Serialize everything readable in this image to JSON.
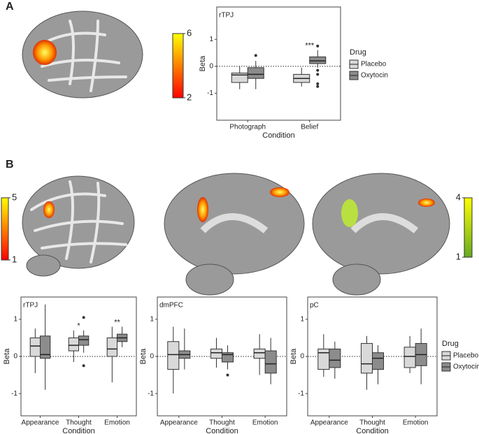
{
  "panels": [
    "A",
    "B"
  ],
  "chart_data": [
    {
      "type": "box",
      "title": "rTPJ",
      "xlabel": "Condition",
      "ylabel": "Beta",
      "categories": [
        "Photograph",
        "Belief"
      ],
      "ylim": [
        -2,
        2.2
      ],
      "yticks": [
        -1,
        0,
        1
      ],
      "reference_line": 0,
      "annotations": [
        null,
        "***"
      ],
      "legend": "right",
      "legend_title": "Drug",
      "series": [
        {
          "name": "Placebo",
          "color": "#d9d9d9",
          "values": [
            {
              "min": -0.85,
              "q1": -0.6,
              "median": -0.32,
              "q3": -0.25,
              "max": 0,
              "outliers": []
            },
            {
              "min": -0.75,
              "q1": -0.6,
              "median": -0.45,
              "q3": -0.3,
              "max": -0.05,
              "outliers": []
            }
          ]
        },
        {
          "name": "Oxytocin",
          "color": "#8c8c8c",
          "values": [
            {
              "min": -0.85,
              "q1": -0.45,
              "median": -0.3,
              "q3": -0.05,
              "max": 0.2,
              "outliers": [
                0.4
              ]
            },
            {
              "min": -0.05,
              "q1": 0.1,
              "median": 0.2,
              "q3": 0.35,
              "max": 0.6,
              "outliers": [
                0.75,
                -0.15,
                -0.3,
                -0.65,
                -0.75
              ]
            }
          ]
        }
      ]
    },
    {
      "type": "colorbar",
      "ylim": [
        2,
        6
      ],
      "yticks": [
        2,
        6
      ],
      "colors": [
        "#ff0000",
        "#ffff00"
      ]
    },
    {
      "type": "colorbar",
      "ylim": [
        1,
        5
      ],
      "yticks": [
        1,
        5
      ],
      "colors": [
        "#ff0000",
        "#ffff00"
      ]
    },
    {
      "type": "colorbar",
      "ylim": [
        1,
        4
      ],
      "yticks": [
        1,
        4
      ],
      "colors": [
        "#66aa22",
        "#ffff00"
      ]
    },
    {
      "type": "box",
      "title": "rTPJ",
      "xlabel": "Condition",
      "ylabel": "Beta",
      "categories": [
        "Appearance",
        "Thought",
        "Emotion"
      ],
      "ylim": [
        -1.6,
        1.6
      ],
      "yticks": [
        -1,
        0,
        1
      ],
      "reference_line": 0,
      "annotations": [
        null,
        "*",
        "**"
      ],
      "series": [
        {
          "name": "Placebo",
          "color": "#d9d9d9",
          "values": [
            {
              "min": -0.45,
              "q1": 0,
              "median": 0.28,
              "q3": 0.5,
              "max": 0.75,
              "outliers": []
            },
            {
              "min": -0.15,
              "q1": 0.15,
              "median": 0.3,
              "q3": 0.5,
              "max": 0.7,
              "outliers": []
            },
            {
              "min": -0.7,
              "q1": 0,
              "median": 0.2,
              "q3": 0.5,
              "max": 0.8,
              "outliers": []
            }
          ]
        },
        {
          "name": "Oxytocin",
          "color": "#8c8c8c",
          "values": [
            {
              "min": -0.9,
              "q1": -0.05,
              "median": 0.05,
              "q3": 0.55,
              "max": 1.4,
              "outliers": []
            },
            {
              "min": 0.1,
              "q1": 0.3,
              "median": 0.45,
              "q3": 0.55,
              "max": 0.7,
              "outliers": [
                1.05,
                -0.25
              ]
            },
            {
              "min": 0.25,
              "q1": 0.4,
              "median": 0.5,
              "q3": 0.6,
              "max": 0.8,
              "outliers": []
            }
          ]
        }
      ]
    },
    {
      "type": "box",
      "title": "dmPFC",
      "xlabel": "Condition",
      "ylabel": "Beta",
      "categories": [
        "Appearance",
        "Thought",
        "Emotion"
      ],
      "ylim": [
        -1.6,
        1.6
      ],
      "yticks": [
        -1,
        0,
        1
      ],
      "reference_line": 0,
      "series": [
        {
          "name": "Placebo",
          "color": "#d9d9d9",
          "values": [
            {
              "min": -1.0,
              "q1": -0.35,
              "median": 0.05,
              "q3": 0.4,
              "max": 0.8,
              "outliers": []
            },
            {
              "min": -0.3,
              "q1": -0.05,
              "median": 0.1,
              "q3": 0.2,
              "max": 0.5,
              "outliers": []
            },
            {
              "min": -0.5,
              "q1": -0.05,
              "median": 0.1,
              "q3": 0.2,
              "max": 0.6,
              "outliers": []
            }
          ]
        },
        {
          "name": "Oxytocin",
          "color": "#8c8c8c",
          "values": [
            {
              "min": -0.35,
              "q1": -0.05,
              "median": 0.05,
              "q3": 0.15,
              "max": 0.75,
              "outliers": []
            },
            {
              "min": -0.35,
              "q1": -0.15,
              "median": 0.05,
              "q3": 0.1,
              "max": 0.3,
              "outliers": [
                -0.5
              ]
            },
            {
              "min": -0.75,
              "q1": -0.45,
              "median": -0.2,
              "q3": 0.15,
              "max": 0.5,
              "outliers": []
            }
          ]
        }
      ]
    },
    {
      "type": "box",
      "title": "pC",
      "xlabel": "Condition",
      "ylabel": "Beta",
      "categories": [
        "Appearance",
        "Thought",
        "Emotion"
      ],
      "ylim": [
        -1.6,
        1.6
      ],
      "yticks": [
        -1,
        0,
        1
      ],
      "reference_line": 0,
      "legend": "right",
      "legend_title": "Drug",
      "series": [
        {
          "name": "Placebo",
          "color": "#d9d9d9",
          "values": [
            {
              "min": -0.55,
              "q1": -0.35,
              "median": 0.1,
              "q3": 0.2,
              "max": 0.6,
              "outliers": []
            },
            {
              "min": -0.9,
              "q1": -0.45,
              "median": -0.2,
              "q3": 0.35,
              "max": 0.55,
              "outliers": []
            },
            {
              "min": -0.45,
              "q1": -0.3,
              "median": 0,
              "q3": 0.25,
              "max": 0.55,
              "outliers": []
            }
          ]
        },
        {
          "name": "Oxytocin",
          "color": "#8c8c8c",
          "values": [
            {
              "min": -0.6,
              "q1": -0.3,
              "median": -0.1,
              "q3": 0.2,
              "max": 0.4,
              "outliers": []
            },
            {
              "min": -0.75,
              "q1": -0.35,
              "median": -0.05,
              "q3": 0.1,
              "max": 0.3,
              "outliers": []
            },
            {
              "min": -0.75,
              "q1": -0.25,
              "median": 0.05,
              "q3": 0.35,
              "max": 0.75,
              "outliers": []
            }
          ]
        }
      ]
    }
  ]
}
